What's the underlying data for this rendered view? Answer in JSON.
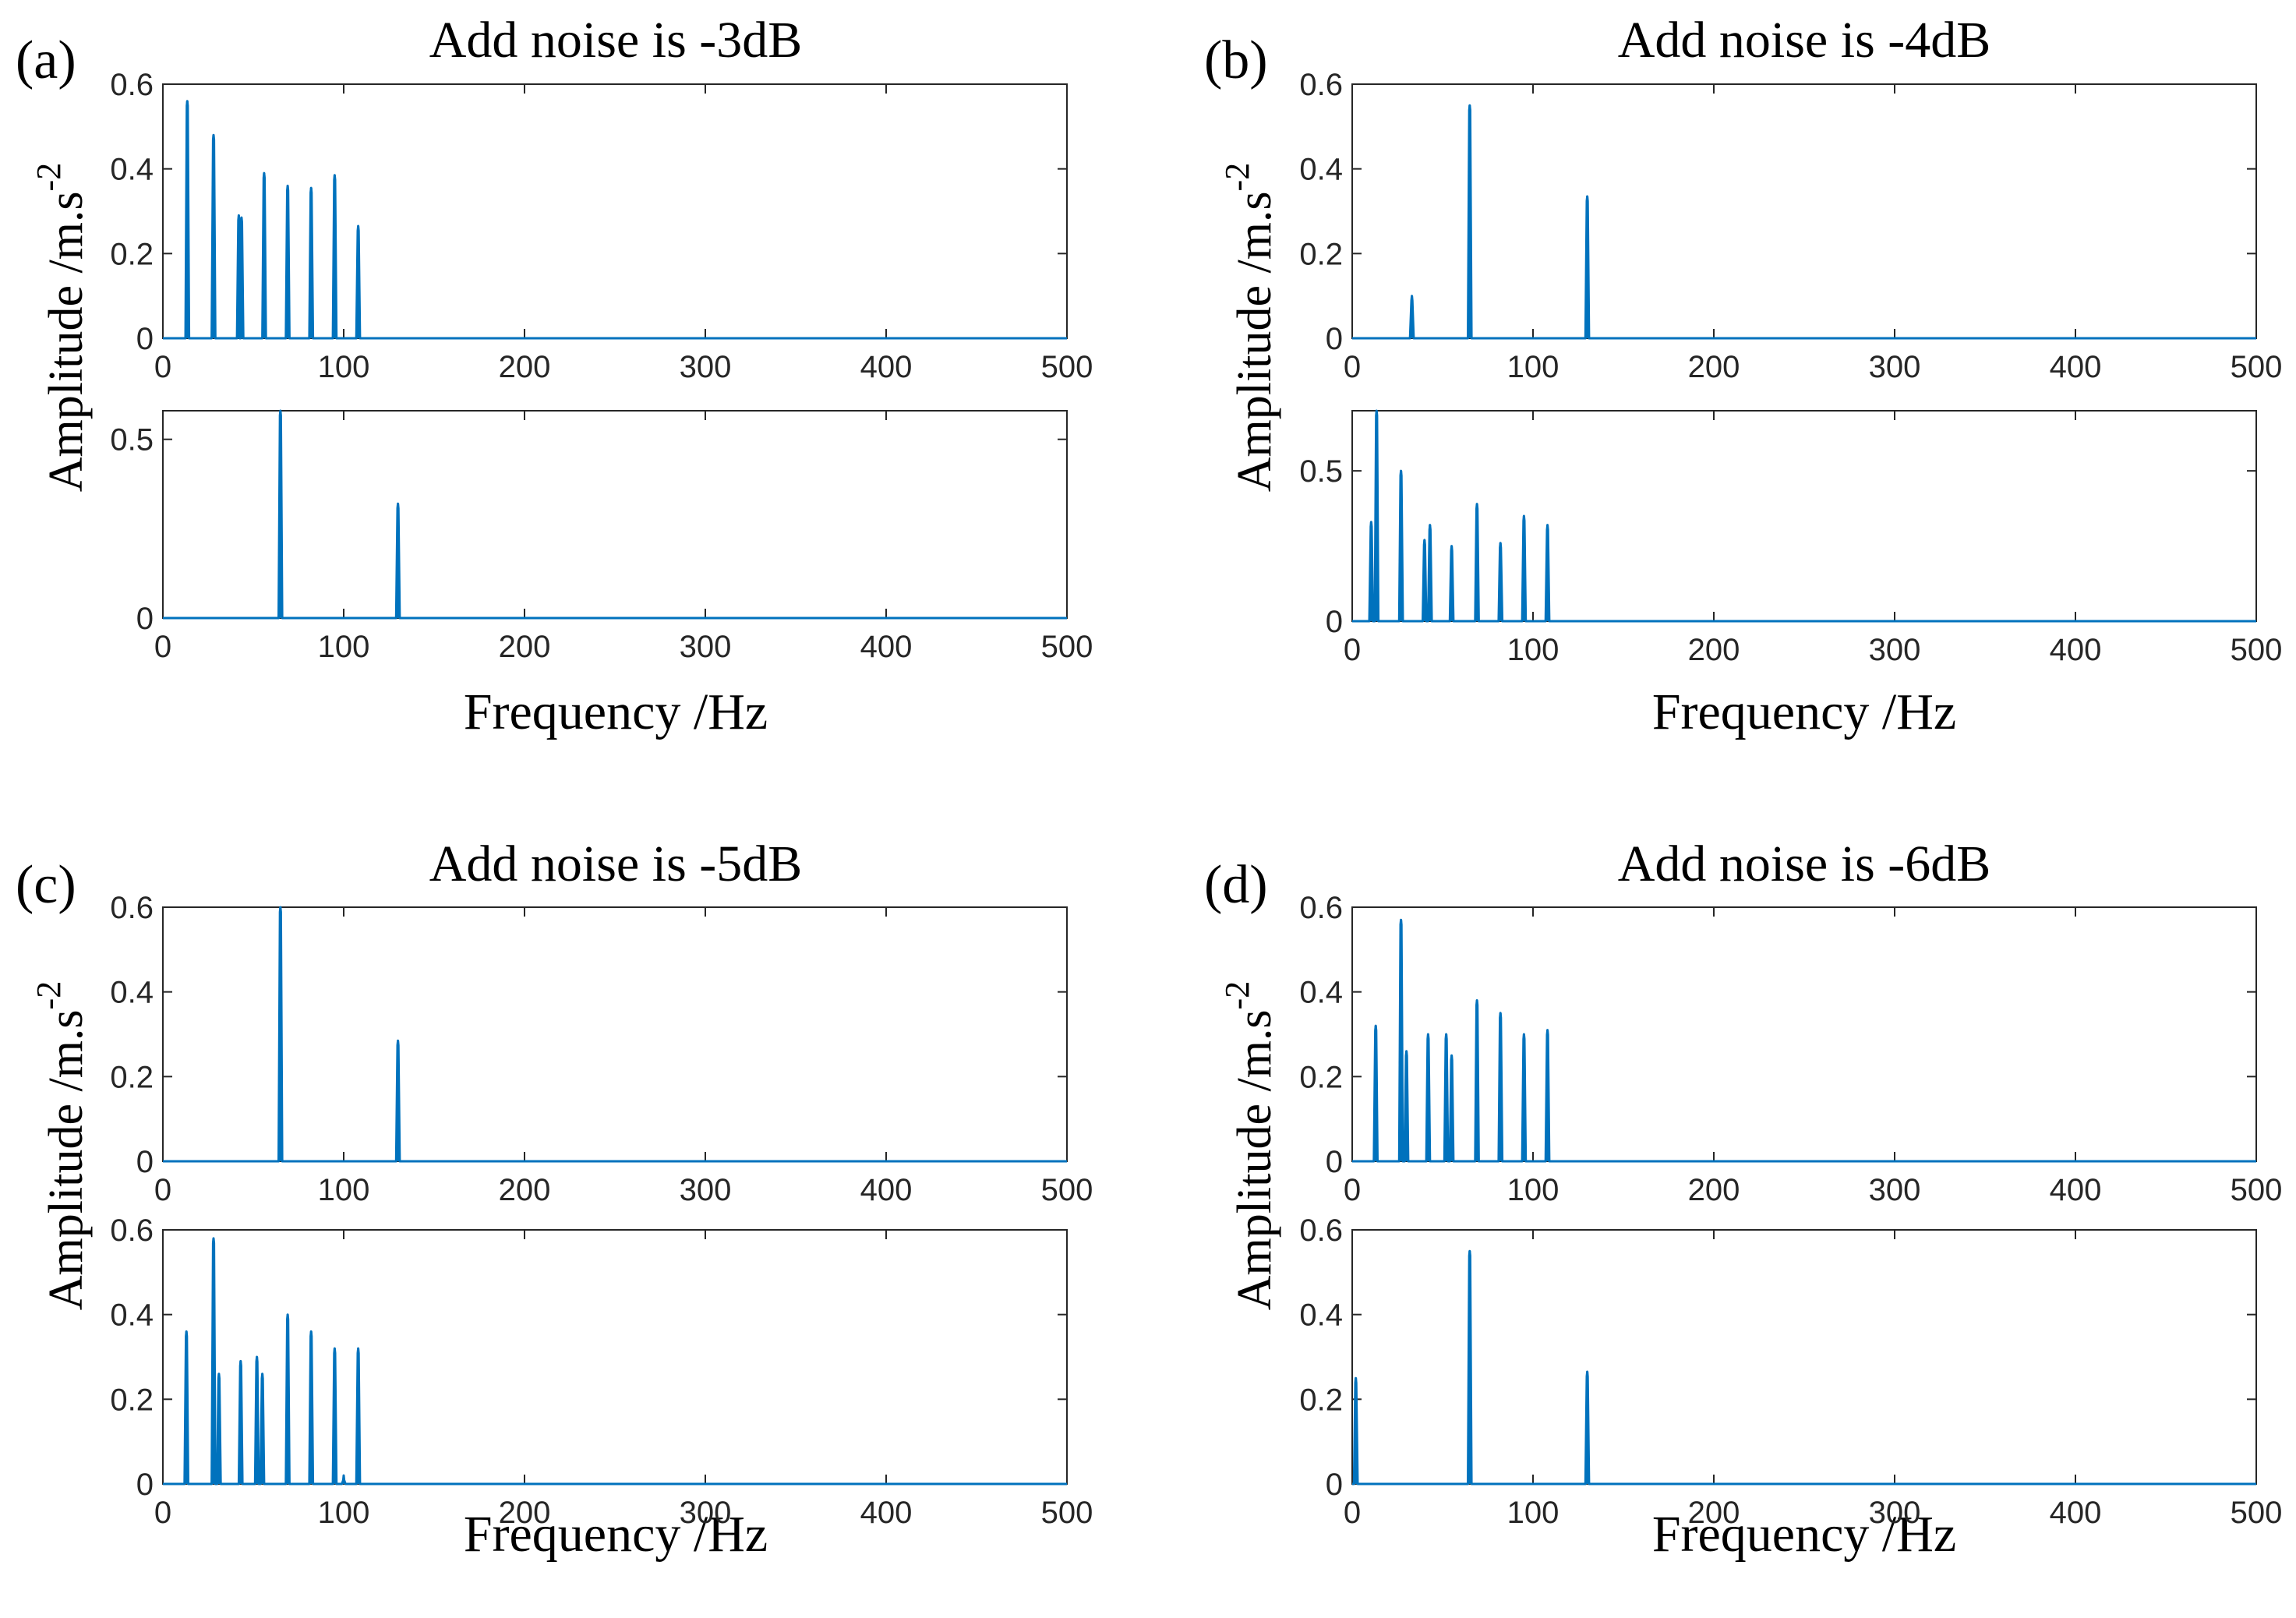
{
  "figure": {
    "panels": [
      {
        "label": "(a)",
        "title": "Add noise is -3dB",
        "ylabel": "Amplitude /m.s",
        "ylabel_sup": "-2",
        "xlabel": "Frequency /Hz"
      },
      {
        "label": "(b)",
        "title": "Add noise is -4dB",
        "ylabel": "Amplitude /m.s",
        "ylabel_sup": "-2",
        "xlabel": "Frequency /Hz"
      },
      {
        "label": "(c)",
        "title": "Add noise is -5dB",
        "ylabel": "Amplitude /m.s",
        "ylabel_sup": "-2",
        "xlabel": "Frequency /Hz"
      },
      {
        "label": "(d)",
        "title": "Add noise is -6dB",
        "ylabel": "Amplitude /m.s",
        "ylabel_sup": "-2",
        "xlabel": "Frequency /Hz"
      }
    ]
  },
  "chart_data": [
    {
      "panel": "(a)",
      "position": "top",
      "type": "line",
      "series_color": "#0072BD",
      "xlim": [
        0,
        500
      ],
      "ylim": [
        0,
        0.6
      ],
      "xticks": [
        0,
        100,
        200,
        300,
        400,
        500
      ],
      "xtick_labels": [
        "0",
        "100",
        "200",
        "300",
        "400",
        "500"
      ],
      "yticks": [
        0,
        0.2,
        0.4,
        0.6
      ],
      "ytick_labels": [
        "0",
        "0.2",
        "0.4",
        "0.6"
      ],
      "peaks": [
        {
          "x": 13.5,
          "y": 0.56
        },
        {
          "x": 28,
          "y": 0.48
        },
        {
          "x": 42,
          "y": 0.29
        },
        {
          "x": 43.5,
          "y": 0.285
        },
        {
          "x": 56,
          "y": 0.39
        },
        {
          "x": 69,
          "y": 0.36
        },
        {
          "x": 82,
          "y": 0.355
        },
        {
          "x": 95,
          "y": 0.385
        },
        {
          "x": 108,
          "y": 0.265
        }
      ]
    },
    {
      "panel": "(a)",
      "position": "bottom",
      "type": "line",
      "series_color": "#0072BD",
      "xlim": [
        0,
        500
      ],
      "ylim": [
        0,
        0.58
      ],
      "xticks": [
        0,
        100,
        200,
        300,
        400,
        500
      ],
      "xtick_labels": [
        "0",
        "100",
        "200",
        "300",
        "400",
        "500"
      ],
      "yticks": [
        0,
        0.5
      ],
      "ytick_labels": [
        "0",
        "0.5"
      ],
      "peaks": [
        {
          "x": 65,
          "y": 0.58
        },
        {
          "x": 130,
          "y": 0.32
        }
      ]
    },
    {
      "panel": "(b)",
      "position": "top",
      "type": "line",
      "series_color": "#0072BD",
      "xlim": [
        0,
        500
      ],
      "ylim": [
        0,
        0.6
      ],
      "xticks": [
        0,
        100,
        200,
        300,
        400,
        500
      ],
      "xtick_labels": [
        "0",
        "100",
        "200",
        "300",
        "400",
        "500"
      ],
      "yticks": [
        0,
        0.2,
        0.4,
        0.6
      ],
      "ytick_labels": [
        "0",
        "0.2",
        "0.4",
        "0.6"
      ],
      "peaks": [
        {
          "x": 33,
          "y": 0.1
        },
        {
          "x": 65,
          "y": 0.55
        },
        {
          "x": 130,
          "y": 0.335
        }
      ]
    },
    {
      "panel": "(b)",
      "position": "bottom",
      "type": "line",
      "series_color": "#0072BD",
      "xlim": [
        0,
        500
      ],
      "ylim": [
        0,
        0.7
      ],
      "xticks": [
        0,
        100,
        200,
        300,
        400,
        500
      ],
      "xtick_labels": [
        "0",
        "100",
        "200",
        "300",
        "400",
        "500"
      ],
      "yticks": [
        0,
        0.5
      ],
      "ytick_labels": [
        "0",
        "0.5"
      ],
      "peaks": [
        {
          "x": 10.5,
          "y": 0.33
        },
        {
          "x": 13.5,
          "y": 0.7
        },
        {
          "x": 27,
          "y": 0.5
        },
        {
          "x": 40,
          "y": 0.27
        },
        {
          "x": 43,
          "y": 0.32
        },
        {
          "x": 55,
          "y": 0.25
        },
        {
          "x": 69,
          "y": 0.39
        },
        {
          "x": 82,
          "y": 0.26
        },
        {
          "x": 95,
          "y": 0.35
        },
        {
          "x": 108,
          "y": 0.32
        }
      ]
    },
    {
      "panel": "(c)",
      "position": "top",
      "type": "line",
      "series_color": "#0072BD",
      "xlim": [
        0,
        500
      ],
      "ylim": [
        0,
        0.6
      ],
      "xticks": [
        0,
        100,
        200,
        300,
        400,
        500
      ],
      "xtick_labels": [
        "0",
        "100",
        "200",
        "300",
        "400",
        "500"
      ],
      "yticks": [
        0,
        0.2,
        0.4,
        0.6
      ],
      "ytick_labels": [
        "0",
        "0.2",
        "0.4",
        "0.6"
      ],
      "peaks": [
        {
          "x": 65,
          "y": 0.6
        },
        {
          "x": 130,
          "y": 0.285
        }
      ]
    },
    {
      "panel": "(c)",
      "position": "bottom",
      "type": "line",
      "series_color": "#0072BD",
      "xlim": [
        0,
        500
      ],
      "ylim": [
        0,
        0.6
      ],
      "xticks": [
        0,
        100,
        200,
        300,
        400,
        500
      ],
      "xtick_labels": [
        "0",
        "100",
        "200",
        "300",
        "400",
        "500"
      ],
      "yticks": [
        0,
        0.2,
        0.4,
        0.6
      ],
      "ytick_labels": [
        "0",
        "0.2",
        "0.4",
        "0.6"
      ],
      "peaks": [
        {
          "x": 13,
          "y": 0.36
        },
        {
          "x": 28,
          "y": 0.58
        },
        {
          "x": 31,
          "y": 0.26
        },
        {
          "x": 43,
          "y": 0.29
        },
        {
          "x": 52,
          "y": 0.3
        },
        {
          "x": 55,
          "y": 0.26
        },
        {
          "x": 69,
          "y": 0.4
        },
        {
          "x": 82,
          "y": 0.36
        },
        {
          "x": 95,
          "y": 0.32
        },
        {
          "x": 100,
          "y": 0.02
        },
        {
          "x": 108,
          "y": 0.32
        }
      ]
    },
    {
      "panel": "(d)",
      "position": "top",
      "type": "line",
      "series_color": "#0072BD",
      "xlim": [
        0,
        500
      ],
      "ylim": [
        0,
        0.6
      ],
      "xticks": [
        0,
        100,
        200,
        300,
        400,
        500
      ],
      "xtick_labels": [
        "0",
        "100",
        "200",
        "300",
        "400",
        "500"
      ],
      "yticks": [
        0,
        0.2,
        0.4,
        0.6
      ],
      "ytick_labels": [
        "0",
        "0.2",
        "0.4",
        "0.6"
      ],
      "peaks": [
        {
          "x": 13,
          "y": 0.32
        },
        {
          "x": 27,
          "y": 0.57
        },
        {
          "x": 30,
          "y": 0.26
        },
        {
          "x": 42,
          "y": 0.3
        },
        {
          "x": 52,
          "y": 0.3
        },
        {
          "x": 55,
          "y": 0.25
        },
        {
          "x": 69,
          "y": 0.38
        },
        {
          "x": 82,
          "y": 0.35
        },
        {
          "x": 95,
          "y": 0.3
        },
        {
          "x": 108,
          "y": 0.31
        }
      ]
    },
    {
      "panel": "(d)",
      "position": "bottom",
      "type": "line",
      "series_color": "#0072BD",
      "xlim": [
        0,
        500
      ],
      "ylim": [
        0,
        0.6
      ],
      "xticks": [
        0,
        100,
        200,
        300,
        400,
        500
      ],
      "xtick_labels": [
        "0",
        "100",
        "200",
        "300",
        "400",
        "500"
      ],
      "yticks": [
        0,
        0.2,
        0.4,
        0.6
      ],
      "ytick_labels": [
        "0",
        "0.2",
        "0.4",
        "0.6"
      ],
      "peaks": [
        {
          "x": 2,
          "y": 0.25
        },
        {
          "x": 65,
          "y": 0.55
        },
        {
          "x": 130,
          "y": 0.265
        }
      ]
    }
  ]
}
